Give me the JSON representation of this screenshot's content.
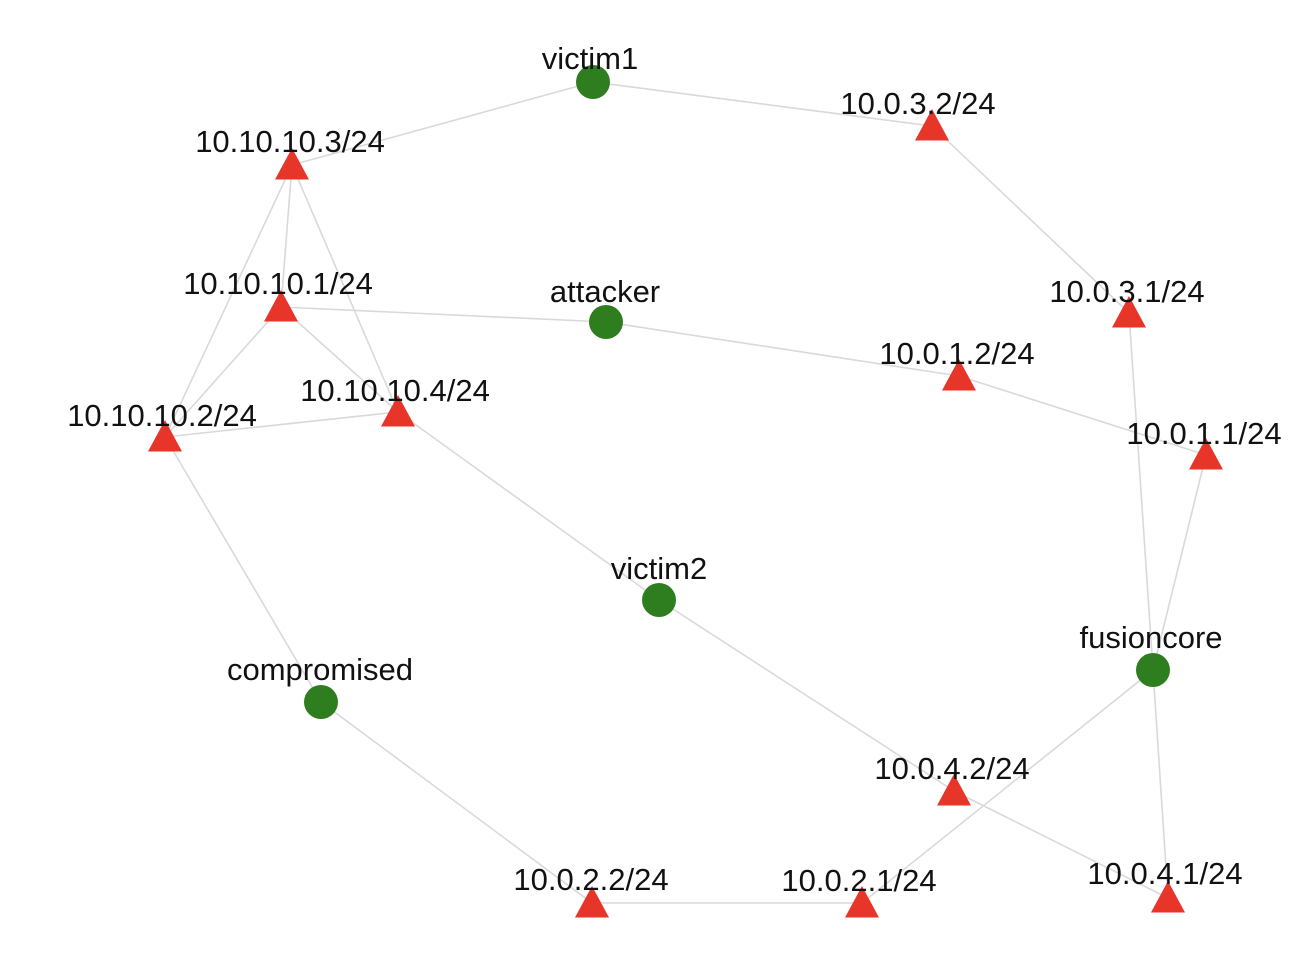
{
  "graph": {
    "colors": {
      "edge": "#d9d9d9",
      "host": "#2e7d1e",
      "interface": "#e8352a",
      "label": "#111111"
    },
    "nodes": [
      {
        "id": "victim1",
        "label": "victim1",
        "kind": "host",
        "icon": "circle-node-icon"
      },
      {
        "id": "attacker",
        "label": "attacker",
        "kind": "host",
        "icon": "circle-node-icon"
      },
      {
        "id": "victim2",
        "label": "victim2",
        "kind": "host",
        "icon": "circle-node-icon"
      },
      {
        "id": "compromised",
        "label": "compromised",
        "kind": "host",
        "icon": "circle-node-icon"
      },
      {
        "id": "fusioncore",
        "label": "fusioncore",
        "kind": "host",
        "icon": "circle-node-icon"
      },
      {
        "id": "n10_10_10_3",
        "label": "10.10.10.3/24",
        "kind": "interface",
        "icon": "triangle-node-icon"
      },
      {
        "id": "n10_10_10_1",
        "label": "10.10.10.1/24",
        "kind": "interface",
        "icon": "triangle-node-icon"
      },
      {
        "id": "n10_10_10_4",
        "label": "10.10.10.4/24",
        "kind": "interface",
        "icon": "triangle-node-icon"
      },
      {
        "id": "n10_10_10_2",
        "label": "10.10.10.2/24",
        "kind": "interface",
        "icon": "triangle-node-icon"
      },
      {
        "id": "n10_0_3_2",
        "label": "10.0.3.2/24",
        "kind": "interface",
        "icon": "triangle-node-icon"
      },
      {
        "id": "n10_0_3_1",
        "label": "10.0.3.1/24",
        "kind": "interface",
        "icon": "triangle-node-icon"
      },
      {
        "id": "n10_0_1_2",
        "label": "10.0.1.2/24",
        "kind": "interface",
        "icon": "triangle-node-icon"
      },
      {
        "id": "n10_0_1_1",
        "label": "10.0.1.1/24",
        "kind": "interface",
        "icon": "triangle-node-icon"
      },
      {
        "id": "n10_0_4_2",
        "label": "10.0.4.2/24",
        "kind": "interface",
        "icon": "triangle-node-icon"
      },
      {
        "id": "n10_0_4_1",
        "label": "10.0.4.1/24",
        "kind": "interface",
        "icon": "triangle-node-icon"
      },
      {
        "id": "n10_0_2_2",
        "label": "10.0.2.2/24",
        "kind": "interface",
        "icon": "triangle-node-icon"
      },
      {
        "id": "n10_0_2_1",
        "label": "10.0.2.1/24",
        "kind": "interface",
        "icon": "triangle-node-icon"
      }
    ],
    "edges": [
      {
        "from": "victim1",
        "to": "n10_10_10_3"
      },
      {
        "from": "victim1",
        "to": "n10_0_3_2"
      },
      {
        "from": "n10_0_3_2",
        "to": "n10_0_3_1"
      },
      {
        "from": "n10_0_3_1",
        "to": "fusioncore"
      },
      {
        "from": "n10_10_10_3",
        "to": "n10_10_10_1"
      },
      {
        "from": "n10_10_10_3",
        "to": "n10_10_10_2"
      },
      {
        "from": "n10_10_10_3",
        "to": "n10_10_10_4"
      },
      {
        "from": "n10_10_10_1",
        "to": "n10_10_10_2"
      },
      {
        "from": "n10_10_10_1",
        "to": "n10_10_10_4"
      },
      {
        "from": "n10_10_10_1",
        "to": "attacker"
      },
      {
        "from": "n10_10_10_2",
        "to": "n10_10_10_4"
      },
      {
        "from": "attacker",
        "to": "n10_0_1_2"
      },
      {
        "from": "n10_0_1_2",
        "to": "n10_0_1_1"
      },
      {
        "from": "n10_0_1_1",
        "to": "fusioncore"
      },
      {
        "from": "n10_10_10_4",
        "to": "victim2"
      },
      {
        "from": "victim2",
        "to": "n10_0_4_2"
      },
      {
        "from": "n10_0_4_2",
        "to": "n10_0_4_1"
      },
      {
        "from": "n10_0_4_1",
        "to": "fusioncore"
      },
      {
        "from": "n10_10_10_2",
        "to": "compromised"
      },
      {
        "from": "compromised",
        "to": "n10_0_2_2"
      },
      {
        "from": "n10_0_2_2",
        "to": "n10_0_2_1"
      },
      {
        "from": "n10_0_2_1",
        "to": "fusioncore"
      }
    ]
  }
}
